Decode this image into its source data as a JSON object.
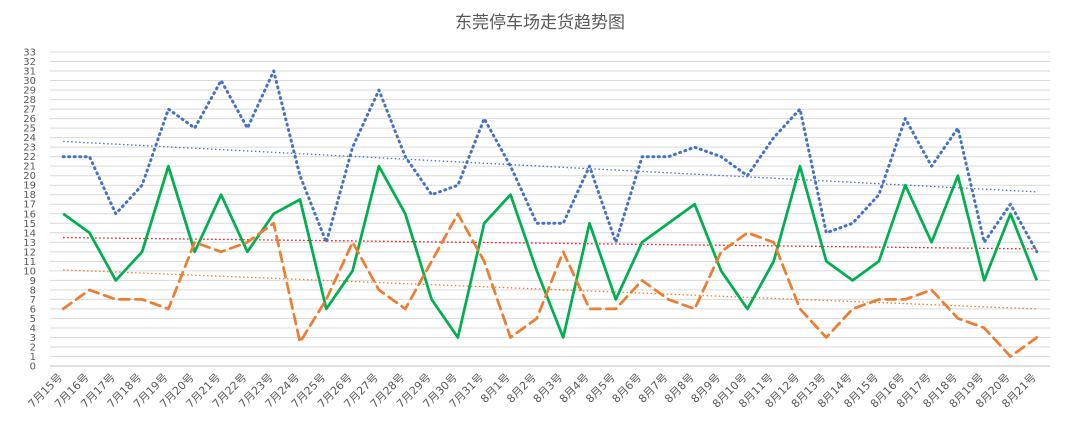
{
  "chart_data": {
    "type": "line",
    "title": "东莞停车场走货趋势图",
    "ylim": [
      0,
      33
    ],
    "grid": true,
    "legend": "none",
    "categories": [
      "7月15号",
      "7月16号",
      "7月17号",
      "7月18号",
      "7月19号",
      "7月20号",
      "7月21号",
      "7月22号",
      "7月23号",
      "7月24号",
      "7月25号",
      "7月26号",
      "7月27号",
      "7月28号",
      "7月29号",
      "7月30号",
      "7月31号",
      "8月1号",
      "8月2号",
      "8月3号",
      "8月4号",
      "8月5号",
      "8月6号",
      "8月7号",
      "8月8号",
      "8月9号",
      "8月10号",
      "8月11号",
      "8月12号",
      "8月13号",
      "8月14号",
      "8月15号",
      "8月16号",
      "8月17号",
      "8月18号",
      "8月19号",
      "8月20号",
      "8月21号"
    ],
    "series": [
      {
        "color": "#4472C4",
        "style": "dotted",
        "values": [
          22,
          22,
          16,
          19,
          27,
          25,
          30,
          25,
          31,
          20,
          13,
          23,
          29,
          22,
          18,
          19,
          26,
          21,
          15,
          15,
          21,
          13,
          22,
          22,
          23,
          22,
          20,
          24,
          27,
          14,
          15,
          18,
          26,
          21,
          25,
          13,
          17,
          12
        ],
        "trendline": {
          "color": "#4472C4",
          "start": 23.6,
          "end": 18.3
        }
      },
      {
        "color": "#00B050",
        "style": "solid",
        "values": [
          16,
          14,
          9,
          12,
          21,
          12,
          18,
          12,
          16,
          17.5,
          6,
          10,
          21,
          16,
          7,
          3,
          15,
          18,
          10,
          3,
          15,
          7,
          13,
          15,
          17,
          10,
          6,
          11,
          21,
          11,
          9,
          11,
          19,
          13,
          20,
          9,
          16,
          9
        ],
        "trendline": {
          "color": "#FF0000",
          "start": 13.5,
          "end": 12.3
        }
      },
      {
        "color": "#ED7D31",
        "style": "dashed",
        "values": [
          6,
          8,
          7,
          7,
          6,
          13,
          12,
          13,
          15,
          2.5,
          7,
          13,
          8,
          6,
          11,
          16,
          11,
          3,
          5,
          12,
          6,
          6,
          9,
          7,
          6,
          12,
          14,
          13,
          6,
          3,
          6,
          7,
          7,
          8,
          5,
          4,
          1,
          3
        ],
        "trendline": {
          "color": "#ED7D31",
          "start": 10.1,
          "end": 6.0
        }
      }
    ]
  }
}
